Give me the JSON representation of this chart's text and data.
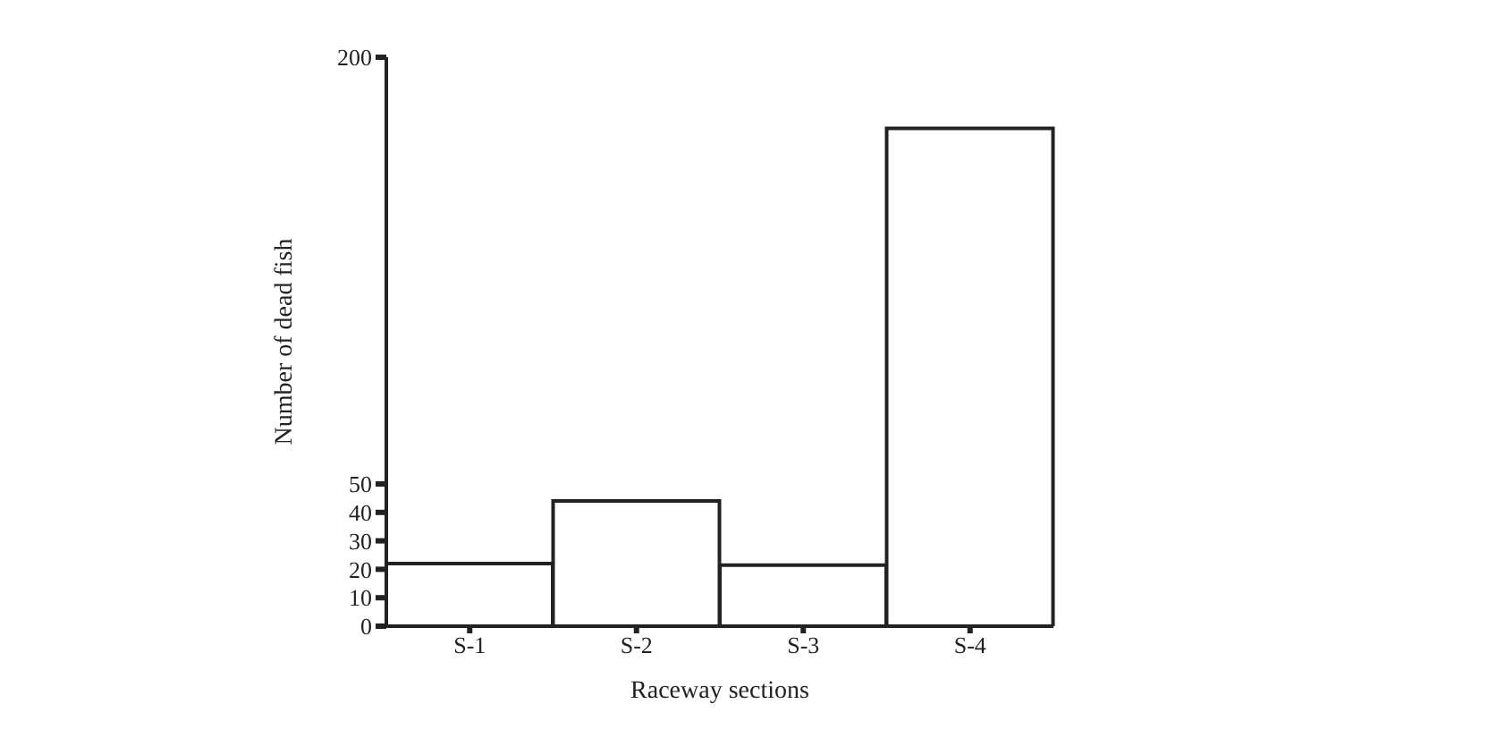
{
  "chart_data": {
    "type": "bar",
    "xlabel": "Raceway sections",
    "ylabel": "Number of dead fish",
    "categories": [
      "S-1",
      "S-2",
      "S-3",
      "S-4"
    ],
    "values": [
      22,
      44,
      21.5,
      175
    ],
    "color": "#ffffff",
    "ylim": [
      0,
      200
    ],
    "yticks": [
      0,
      10,
      20,
      30,
      40,
      50,
      200
    ],
    "grid": false,
    "legend": false
  }
}
